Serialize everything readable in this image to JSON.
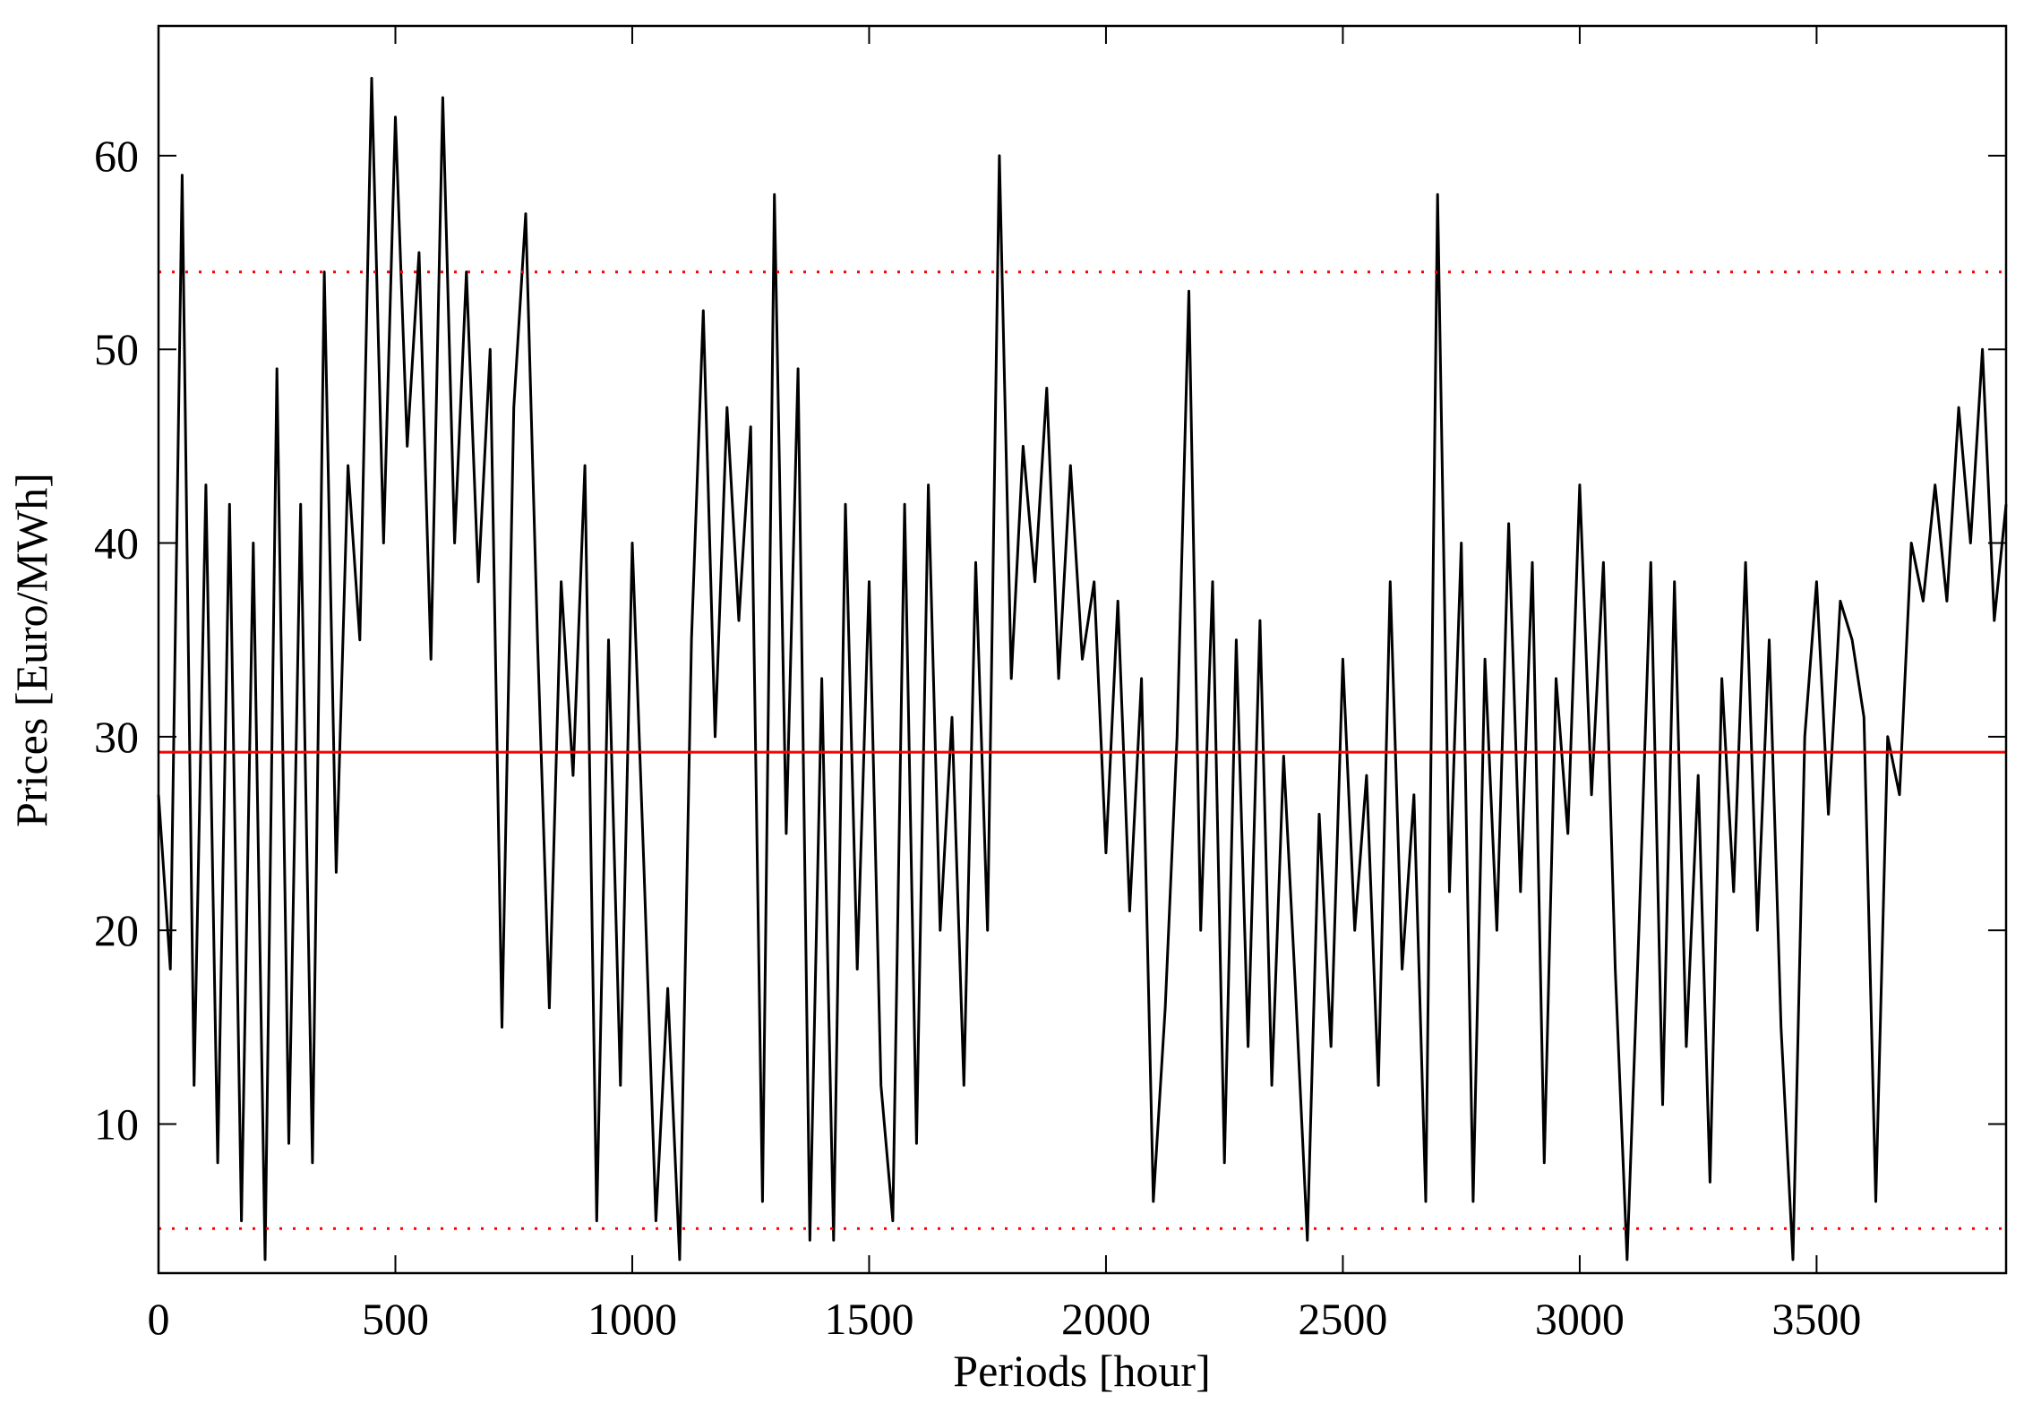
{
  "chart_data": {
    "type": "line",
    "x_label": "Periods [hour]",
    "y_label": "Prices [Euro/MWh]",
    "xlim": [
      0,
      3900
    ],
    "ylim": [
      2.3,
      66.7
    ],
    "xticks": [
      0,
      500,
      1000,
      1500,
      2000,
      2500,
      3000,
      3500
    ],
    "yticks": [
      10,
      20,
      30,
      40,
      50,
      60
    ],
    "grid": false,
    "ref_lines": [
      {
        "value": 29.2,
        "color": "#ff0000",
        "style": "solid"
      },
      {
        "value": 54,
        "color": "#ff0000",
        "style": "dotted"
      },
      {
        "value": 4.6,
        "color": "#ff0000",
        "style": "dotted"
      }
    ],
    "x": [
      0,
      25,
      50,
      75,
      100,
      125,
      150,
      175,
      200,
      225,
      250,
      275,
      300,
      325,
      350,
      375,
      400,
      425,
      450,
      475,
      500,
      525,
      550,
      575,
      600,
      625,
      650,
      675,
      700,
      725,
      750,
      775,
      800,
      825,
      850,
      875,
      900,
      925,
      950,
      975,
      1000,
      1025,
      1050,
      1075,
      1100,
      1125,
      1150,
      1175,
      1200,
      1225,
      1250,
      1275,
      1300,
      1325,
      1350,
      1375,
      1400,
      1425,
      1450,
      1475,
      1500,
      1525,
      1550,
      1575,
      1600,
      1625,
      1650,
      1675,
      1700,
      1725,
      1750,
      1775,
      1800,
      1825,
      1850,
      1875,
      1900,
      1925,
      1950,
      1975,
      2000,
      2025,
      2050,
      2075,
      2100,
      2125,
      2150,
      2175,
      2200,
      2225,
      2250,
      2275,
      2300,
      2325,
      2350,
      2375,
      2400,
      2425,
      2450,
      2475,
      2500,
      2525,
      2550,
      2575,
      2600,
      2625,
      2650,
      2675,
      2700,
      2725,
      2750,
      2775,
      2800,
      2825,
      2850,
      2875,
      2900,
      2925,
      2950,
      2975,
      3000,
      3025,
      3050,
      3075,
      3100,
      3125,
      3150,
      3175,
      3200,
      3225,
      3250,
      3275,
      3300,
      3325,
      3350,
      3375,
      3400,
      3425,
      3450,
      3475,
      3500,
      3525,
      3550,
      3575,
      3600,
      3625,
      3650,
      3675,
      3700,
      3725,
      3750,
      3775,
      3800,
      3825,
      3850,
      3875,
      3900
    ],
    "series": [
      {
        "color": "#000000",
        "values": [
          27,
          18,
          59,
          12,
          43,
          8,
          42,
          5,
          40,
          3,
          49,
          9,
          42,
          8,
          54,
          23,
          44,
          35,
          64,
          40,
          62,
          45,
          55,
          34,
          63,
          40,
          54,
          38,
          50,
          15,
          47,
          57,
          35,
          16,
          38,
          28,
          44,
          5,
          35,
          12,
          40,
          23,
          5,
          17,
          3,
          35,
          52,
          30,
          47,
          36,
          46,
          6,
          58,
          25,
          49,
          4,
          33,
          4,
          42,
          18,
          38,
          12,
          5,
          42,
          9,
          43,
          20,
          31,
          12,
          39,
          20,
          60,
          33,
          45,
          38,
          48,
          33,
          44,
          34,
          38,
          24,
          37,
          21,
          33,
          6,
          16,
          30,
          53,
          20,
          38,
          8,
          35,
          14,
          36,
          12,
          29,
          17,
          4,
          26,
          14,
          34,
          20,
          28,
          12,
          38,
          18,
          27,
          6,
          58,
          22,
          40,
          6,
          34,
          20,
          41,
          22,
          39,
          8,
          33,
          25,
          43,
          27,
          39,
          18,
          3,
          20,
          39,
          11,
          38,
          14,
          28,
          7,
          33,
          22,
          39,
          20,
          35,
          15,
          3,
          30,
          38,
          26,
          37,
          35,
          31,
          6,
          30,
          27,
          40,
          37,
          43,
          37,
          47,
          40,
          50,
          36,
          42
        ]
      }
    ]
  }
}
